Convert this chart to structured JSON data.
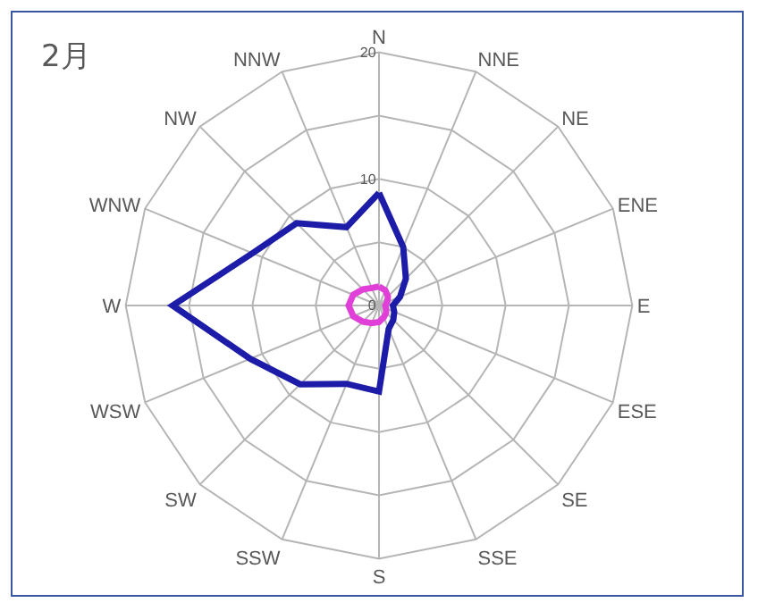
{
  "chart_data": {
    "type": "radar",
    "title": "2月",
    "categories": [
      "N",
      "NNE",
      "NE",
      "ENE",
      "E",
      "ESE",
      "SE",
      "SSE",
      "S",
      "SSW",
      "SW",
      "WSW",
      "W",
      "WNW",
      "NW",
      "NNW"
    ],
    "series": [
      {
        "color": "#1c1ca8",
        "values": [
          8.9,
          5,
          3,
          1.8,
          1.1,
          1.3,
          1.6,
          2,
          6.8,
          6.7,
          8.8,
          11,
          16.3,
          10.8,
          9.2,
          6.7
        ]
      },
      {
        "color": "#e040d8",
        "values": [
          1.5,
          1.3,
          1,
          0.7,
          0.5,
          0.6,
          0.8,
          1,
          1.3,
          1.5,
          1.8,
          2.2,
          2.4,
          2.2,
          1.8,
          1.5
        ]
      }
    ],
    "ylim": [
      0,
      20
    ],
    "yticks": [
      0,
      10,
      20
    ],
    "marker": "none",
    "line_style": "solid",
    "grid": true
  }
}
